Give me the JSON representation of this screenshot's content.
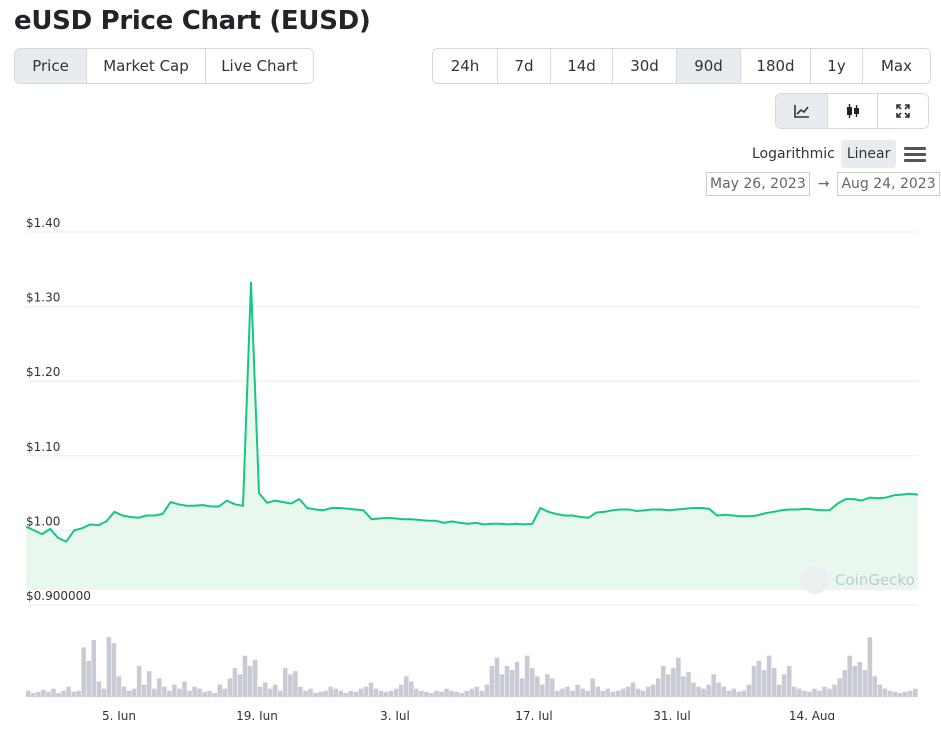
{
  "header": {
    "title": "eUSD Price Chart (EUSD)"
  },
  "tabs": [
    {
      "label": "Price",
      "active": true
    },
    {
      "label": "Market Cap",
      "active": false
    },
    {
      "label": "Live Chart",
      "active": false
    }
  ],
  "ranges": [
    {
      "label": "24h",
      "active": false
    },
    {
      "label": "7d",
      "active": false
    },
    {
      "label": "14d",
      "active": false
    },
    {
      "label": "30d",
      "active": false
    },
    {
      "label": "90d",
      "active": true
    },
    {
      "label": "180d",
      "active": false
    },
    {
      "label": "1y",
      "active": false
    },
    {
      "label": "Max",
      "active": false
    }
  ],
  "chart_types": [
    {
      "icon": "line-chart-icon",
      "active": true
    },
    {
      "icon": "candlestick-icon",
      "active": false
    },
    {
      "icon": "fullscreen-icon",
      "active": false
    }
  ],
  "scale": {
    "log_label": "Logarithmic",
    "linear_label": "Linear",
    "selected": "Linear"
  },
  "date_range": {
    "from": "May 26, 2023",
    "arrow": "→",
    "to": "Aug 24, 2023"
  },
  "watermark": "CoinGecko",
  "colors": {
    "line": "#16c784",
    "fill": "#e8f8ef",
    "volume": "#c8cbd3",
    "grid": "#e9ecef"
  },
  "chart_data": {
    "type": "line",
    "title": "",
    "ylim": [
      0.9,
      1.4
    ],
    "y_ticks": [
      "$1.40",
      "$1.30",
      "$1.20",
      "$1.10",
      "$1.00",
      "$0.900000"
    ],
    "x_ticks": [
      "5. Jun",
      "19. Jun",
      "3. Jul",
      "17. Jul",
      "31. Jul",
      "14. Aug"
    ],
    "series": [
      {
        "values": [
          1.005,
          1.0,
          0.995,
          1.002,
          0.99,
          0.985,
          1.0,
          1.003,
          1.008,
          1.007,
          1.012,
          1.025,
          1.02,
          1.018,
          1.017,
          1.02,
          1.02,
          1.022,
          1.038,
          1.035,
          1.033,
          1.033,
          1.034,
          1.032,
          1.032,
          1.04,
          1.035,
          1.033,
          1.332,
          1.05,
          1.037,
          1.04,
          1.038,
          1.036,
          1.042,
          1.03,
          1.028,
          1.027,
          1.03,
          1.03,
          1.029,
          1.028,
          1.027,
          1.015,
          1.016,
          1.017,
          1.016,
          1.015,
          1.015,
          1.014,
          1.013,
          1.013,
          1.01,
          1.012,
          1.01,
          1.009,
          1.01,
          1.008,
          1.009,
          1.009,
          1.008,
          1.009,
          1.008,
          1.009,
          1.03,
          1.025,
          1.022,
          1.02,
          1.02,
          1.018,
          1.017,
          1.024,
          1.025,
          1.027,
          1.028,
          1.028,
          1.026,
          1.027,
          1.028,
          1.028,
          1.027,
          1.028,
          1.029,
          1.03,
          1.03,
          1.029,
          1.02,
          1.021,
          1.02,
          1.019,
          1.019,
          1.02,
          1.023,
          1.025,
          1.027,
          1.028,
          1.028,
          1.029,
          1.028,
          1.027,
          1.027,
          1.036,
          1.042,
          1.042,
          1.04,
          1.044,
          1.043,
          1.044,
          1.047,
          1.048,
          1.049,
          1.048
        ]
      }
    ],
    "volume": [
      6,
      4,
      5,
      7,
      5,
      8,
      4,
      6,
      10,
      5,
      6,
      48,
      35,
      55,
      15,
      8,
      58,
      52,
      20,
      10,
      6,
      8,
      30,
      12,
      25,
      8,
      18,
      10,
      6,
      12,
      8,
      15,
      6,
      10,
      8,
      5,
      6,
      4,
      12,
      8,
      18,
      28,
      22,
      40,
      30,
      36,
      10,
      14,
      8,
      12,
      6,
      28,
      22,
      25,
      10,
      6,
      8,
      4,
      5,
      6,
      10,
      8,
      6,
      4,
      6,
      5,
      8,
      10,
      14,
      8,
      6,
      5,
      6,
      8,
      12,
      20,
      15,
      8,
      6,
      5,
      4,
      6,
      5,
      8,
      6,
      5,
      4,
      6,
      8,
      10,
      6,
      12,
      30,
      38,
      22,
      30,
      26,
      34,
      18,
      40,
      28,
      20,
      12,
      22,
      18,
      6,
      8,
      10,
      6,
      12,
      8,
      6,
      18,
      10,
      6,
      8,
      5,
      6,
      8,
      10,
      14,
      8,
      6,
      10,
      12,
      18,
      30,
      22,
      28,
      38,
      20,
      24,
      14,
      10,
      8,
      12,
      22,
      14,
      10,
      6,
      8,
      5,
      6,
      12,
      30,
      35,
      26,
      40,
      28,
      12,
      22,
      30,
      10,
      8,
      6,
      5,
      8,
      6,
      10,
      8,
      12,
      18,
      26,
      40,
      30,
      34,
      26,
      58,
      20,
      12,
      8,
      6,
      5,
      4,
      5,
      6,
      8
    ]
  }
}
